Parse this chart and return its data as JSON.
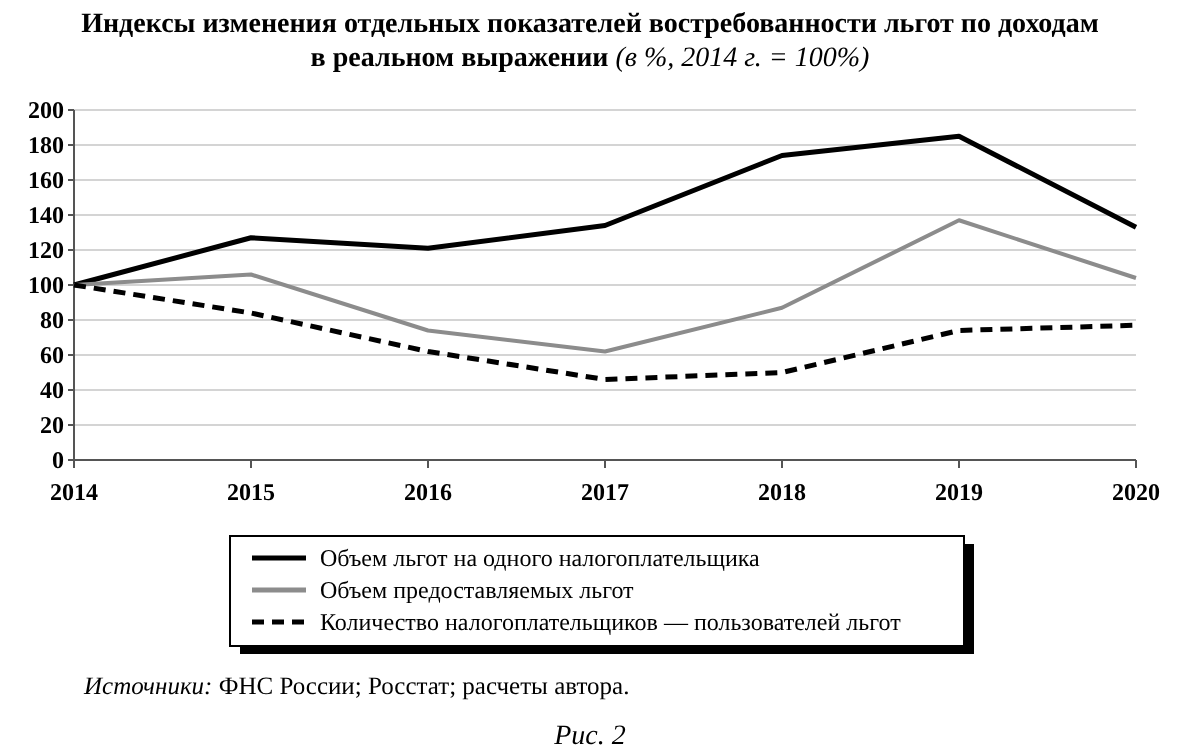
{
  "chart_data": {
    "type": "line",
    "title": "Индексы изменения отдельных показателей востребованности льгот по доходам в реальном выражении (в %, 2014 г. = 100%)",
    "categories": [
      "2014",
      "2015",
      "2016",
      "2017",
      "2018",
      "2019",
      "2020"
    ],
    "series": [
      {
        "name": "Объем льгот на одного налогоплательщика",
        "color": "#000000",
        "line_style": "solid",
        "values": [
          100,
          127,
          121,
          134,
          174,
          185,
          133
        ]
      },
      {
        "name": "Объем предоставляемых льгот",
        "color": "#8c8c8c",
        "line_style": "solid",
        "values": [
          100,
          106,
          74,
          62,
          87,
          137,
          104
        ]
      },
      {
        "name": "Количество налогоплательщиков — пользователей льгот",
        "color": "#000000",
        "line_style": "dashed",
        "values": [
          100,
          84,
          62,
          46,
          50,
          74,
          77
        ]
      }
    ],
    "ylim": [
      0,
      200
    ],
    "yticks": [
      0,
      20,
      40,
      60,
      80,
      100,
      120,
      140,
      160,
      180,
      200
    ],
    "grid": "y",
    "legend": "bottom",
    "marker": "none",
    "annotations": [
      "Источники: ФНС России; Росстат; расчеты автора.",
      "Рис. 2"
    ]
  }
}
